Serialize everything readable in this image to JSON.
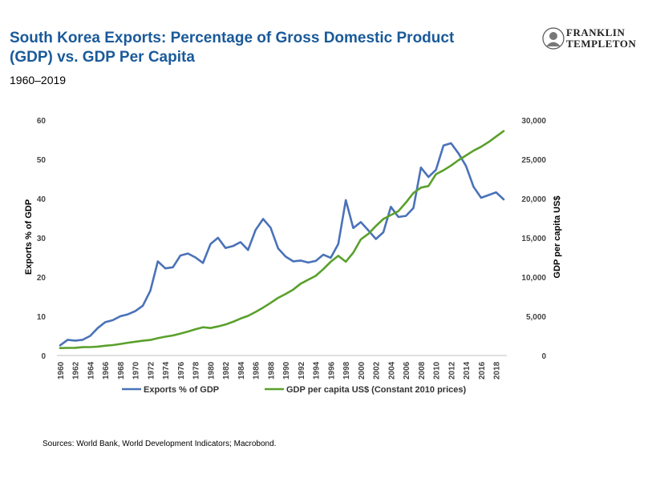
{
  "header": {
    "title": "South Korea Exports: Percentage of Gross Domestic Product (GDP) vs. GDP Per Capita",
    "subtitle": "1960–2019"
  },
  "logo": {
    "line1": "FRANKLIN",
    "line2": "TEMPLETON"
  },
  "footer": {
    "source": "Sources: World Bank, World Development Indicators; Macrobond."
  },
  "colors": {
    "exports": "#4a72b8",
    "gdp": "#5aa02c"
  },
  "chart_data": {
    "type": "line",
    "xlabel": "",
    "ylabel_left": "Exports % of GDP",
    "ylabel_right": "GDP per capita US$",
    "ylim_left": [
      0,
      60
    ],
    "ylim_right": [
      0,
      30000
    ],
    "yticks_left": [
      0,
      10,
      20,
      30,
      40,
      50,
      60
    ],
    "yticks_right": [
      "0",
      "5,000",
      "10,000",
      "15,000",
      "20,000",
      "25,000",
      "30,000"
    ],
    "x_tick_labels": [
      "1960",
      "1962",
      "1964",
      "1966",
      "1968",
      "1970",
      "1972",
      "1974",
      "1976",
      "1978",
      "1980",
      "1982",
      "1984",
      "1986",
      "1988",
      "1990",
      "1992",
      "1994",
      "1996",
      "1998",
      "2000",
      "2002",
      "2004",
      "2006",
      "2008",
      "2010",
      "2012",
      "2014",
      "2016",
      "2018"
    ],
    "x": [
      1960,
      1961,
      1962,
      1963,
      1964,
      1965,
      1966,
      1967,
      1968,
      1969,
      1970,
      1971,
      1972,
      1973,
      1974,
      1975,
      1976,
      1977,
      1978,
      1979,
      1980,
      1981,
      1982,
      1983,
      1984,
      1985,
      1986,
      1987,
      1988,
      1989,
      1990,
      1991,
      1992,
      1993,
      1994,
      1995,
      1996,
      1997,
      1998,
      1999,
      2000,
      2001,
      2002,
      2003,
      2004,
      2005,
      2006,
      2007,
      2008,
      2009,
      2010,
      2011,
      2012,
      2013,
      2014,
      2015,
      2016,
      2017,
      2018,
      2019
    ],
    "legend_position": "bottom",
    "grid": false,
    "series": [
      {
        "name": "Exports % of GDP",
        "axis": "left",
        "values": [
          2.6,
          4.0,
          3.8,
          4.0,
          5.0,
          7.0,
          8.5,
          9.0,
          10.0,
          10.5,
          11.3,
          12.7,
          16.5,
          24.0,
          22.2,
          22.5,
          25.5,
          26.0,
          25.0,
          23.6,
          28.4,
          30.0,
          27.4,
          27.9,
          28.9,
          26.9,
          32.0,
          34.8,
          32.6,
          27.3,
          25.2,
          24.0,
          24.2,
          23.7,
          24.1,
          25.7,
          24.9,
          28.4,
          39.6,
          32.5,
          34.0,
          31.9,
          29.7,
          31.4,
          37.9,
          35.3,
          35.6,
          37.6,
          47.9,
          45.5,
          47.3,
          53.5,
          54.1,
          51.5,
          48.3,
          43.0,
          40.2,
          40.9,
          41.6,
          39.8
        ]
      },
      {
        "name": "GDP per capita US$ (Constant 2010 prices)",
        "axis": "right",
        "values": [
          950,
          970,
          980,
          1060,
          1070,
          1130,
          1250,
          1330,
          1470,
          1620,
          1760,
          1880,
          1980,
          2200,
          2400,
          2550,
          2800,
          3050,
          3350,
          3600,
          3500,
          3700,
          3950,
          4300,
          4700,
          5050,
          5550,
          6100,
          6700,
          7350,
          7850,
          8400,
          9150,
          9650,
          10150,
          11000,
          11950,
          12700,
          11950,
          13100,
          14800,
          15500,
          16500,
          17400,
          17900,
          18400,
          19500,
          20700,
          21400,
          21600,
          23100,
          23600,
          24200,
          24900,
          25500,
          26100,
          26600,
          27200,
          27900,
          28600
        ]
      }
    ]
  }
}
